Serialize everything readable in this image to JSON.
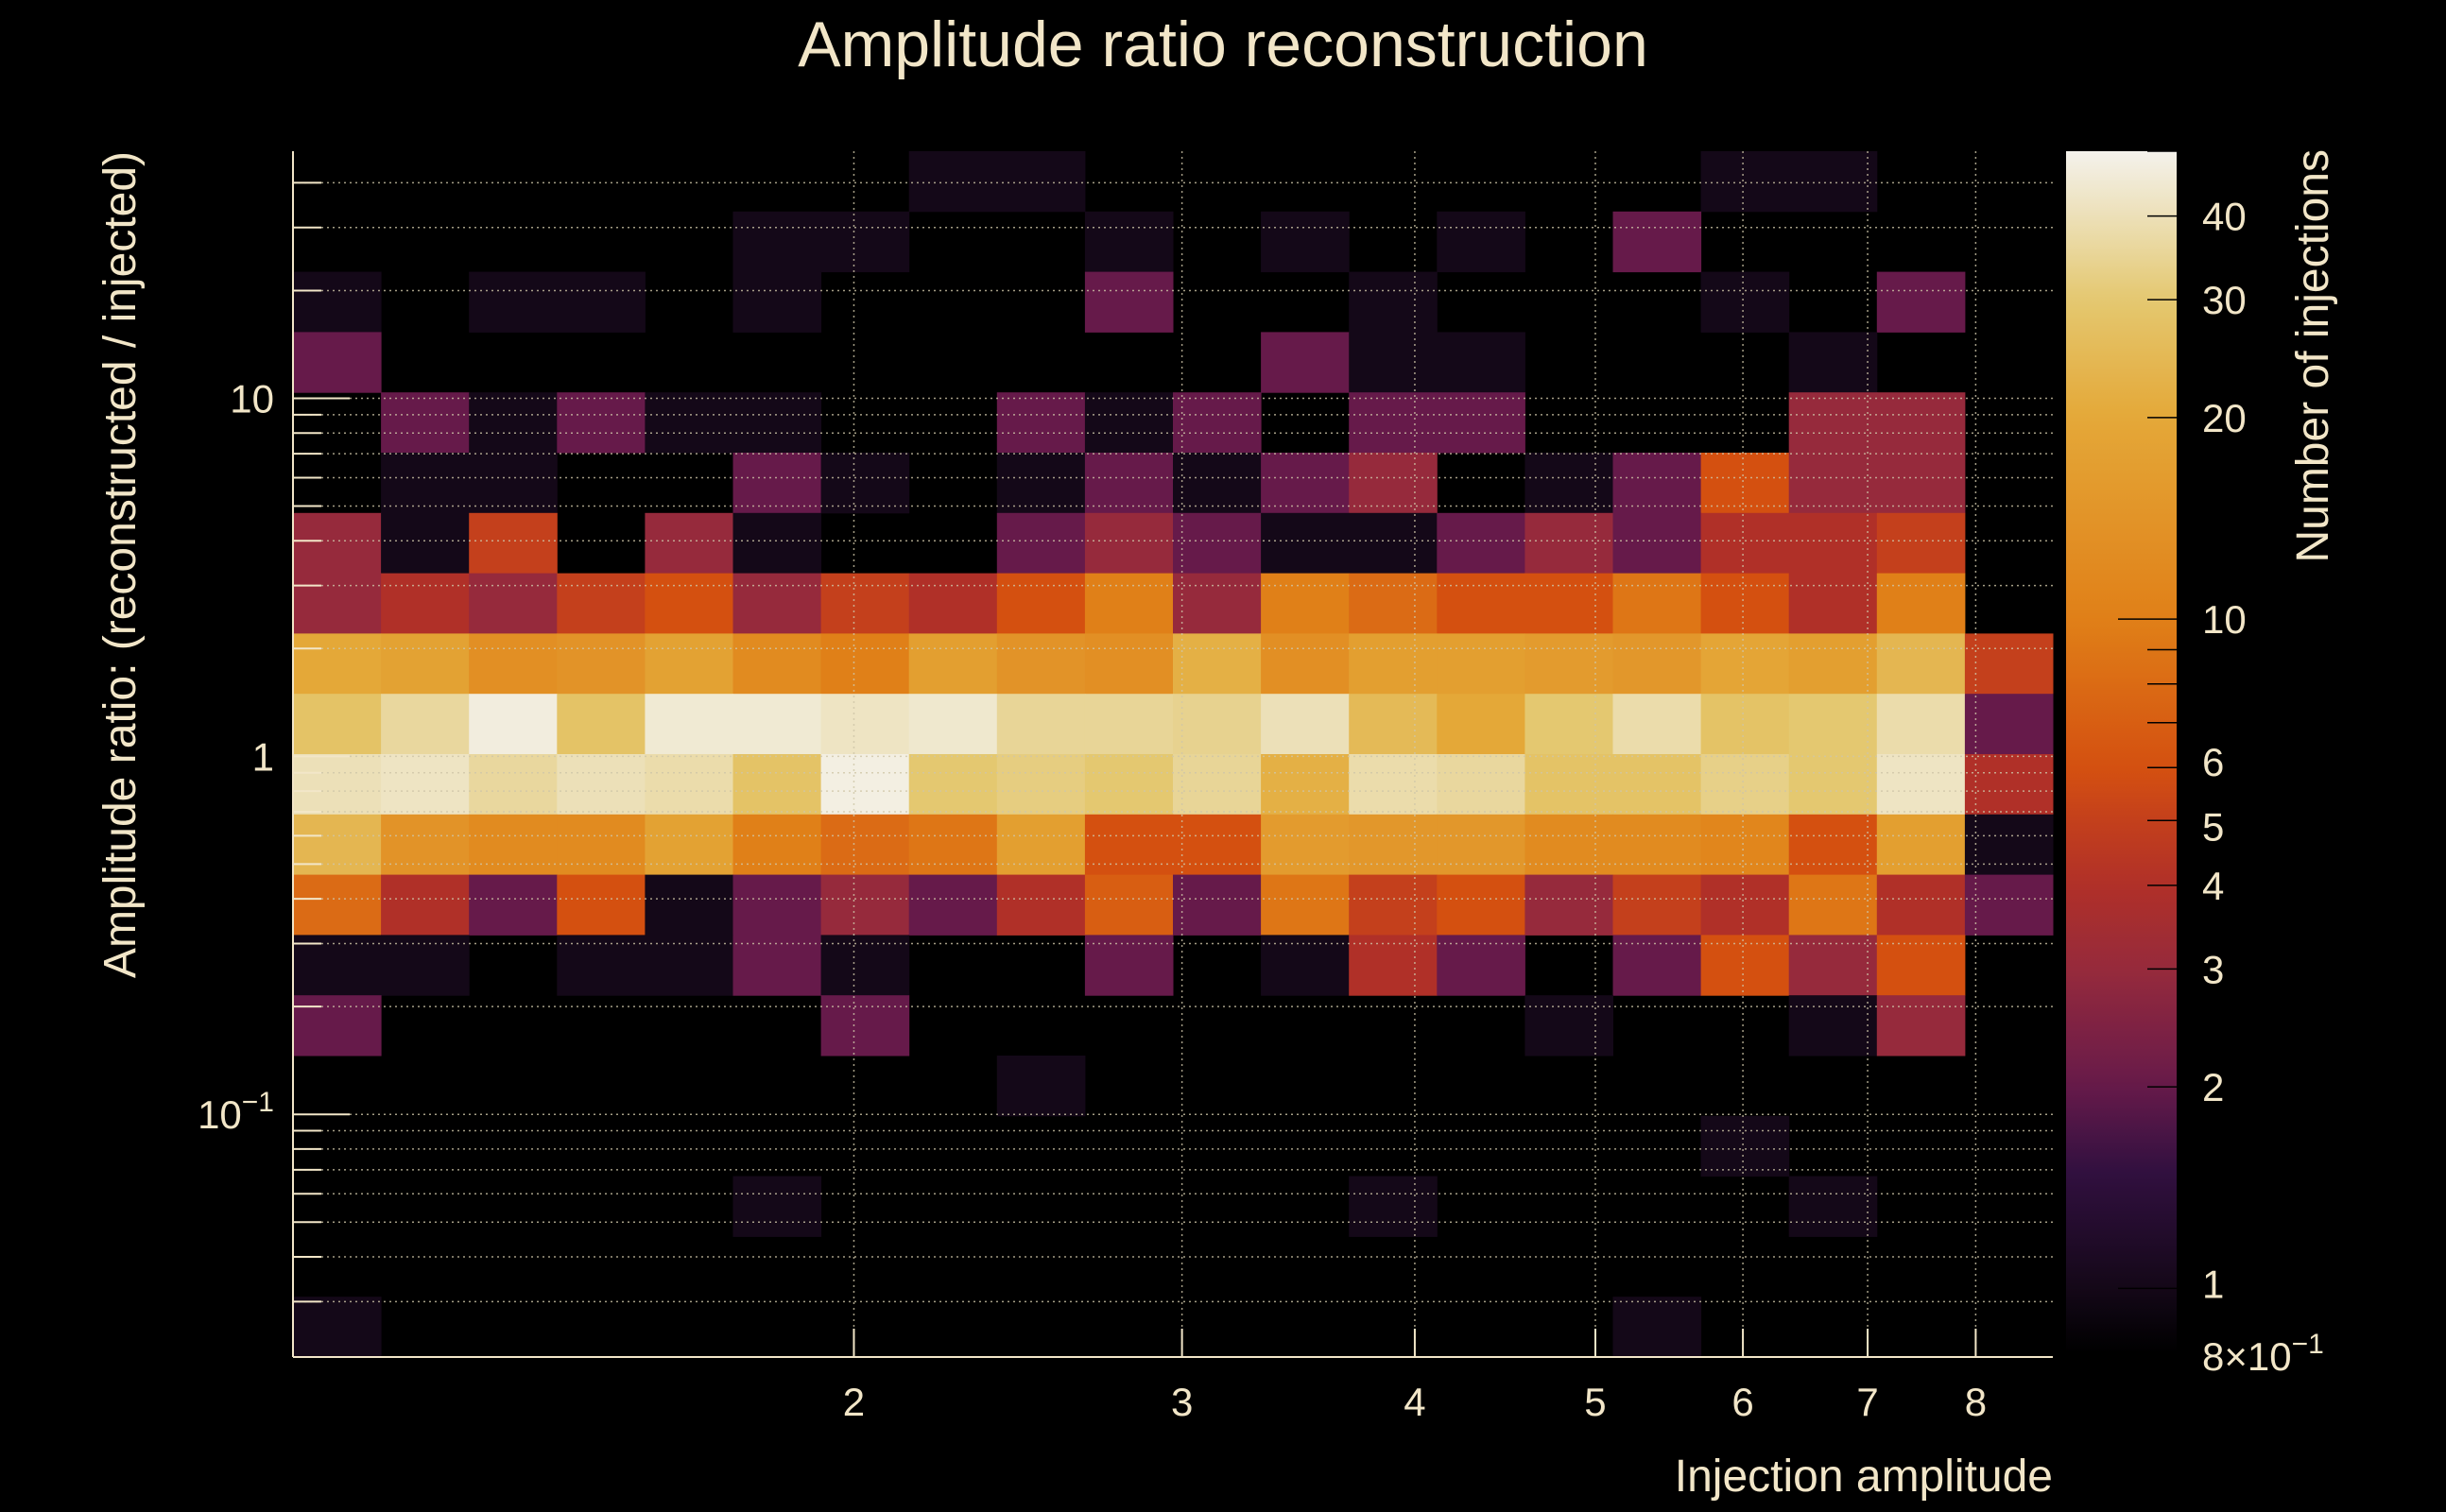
{
  "chart_data": {
    "type": "heatmap",
    "title": "Amplitude ratio reconstruction",
    "xlabel": "Injection amplitude",
    "ylabel": "Amplitude ratio: (reconstructed / injected)",
    "zlabel": "Number of injections",
    "xscale": "log",
    "yscale": "log",
    "zscale": "log",
    "xlim": [
      1.0,
      8.8
    ],
    "ylim": [
      0.021,
      49
    ],
    "zlim": [
      0.8,
      50
    ],
    "x_bins": 20,
    "y_bins": 20,
    "x_ticks": [
      {
        "v": 2,
        "label": "2"
      },
      {
        "v": 3,
        "label": "3"
      },
      {
        "v": 4,
        "label": "4"
      },
      {
        "v": 5,
        "label": "5"
      },
      {
        "v": 6,
        "label": "6"
      },
      {
        "v": 7,
        "label": "7"
      },
      {
        "v": 8,
        "label": "8"
      }
    ],
    "y_ticks": [
      {
        "v": 10,
        "label": "10"
      },
      {
        "v": 1,
        "label": "1"
      },
      {
        "v": 0.1,
        "label": "10",
        "sup": "−1"
      }
    ],
    "z_ticks": [
      {
        "v": 40,
        "label": "40"
      },
      {
        "v": 30,
        "label": "30"
      },
      {
        "v": 20,
        "label": "20"
      },
      {
        "v": 10,
        "label": "10"
      },
      {
        "v": 6,
        "label": "6"
      },
      {
        "v": 5,
        "label": "5"
      },
      {
        "v": 4,
        "label": "4"
      },
      {
        "v": 3,
        "label": "3"
      },
      {
        "v": 2,
        "label": "2"
      },
      {
        "v": 1,
        "label": "1"
      },
      {
        "v": 0.8,
        "label": "8×10",
        "sup": "−1"
      }
    ],
    "grid": true,
    "z_rows_top_to_bottom": [
      [
        0,
        0,
        0,
        0,
        0,
        0,
        0,
        1,
        1,
        0,
        0,
        0,
        0,
        0,
        0,
        0,
        1,
        1,
        0,
        0
      ],
      [
        0,
        0,
        0,
        0,
        0,
        1,
        1,
        0,
        0,
        1,
        0,
        1,
        0,
        1,
        0,
        2,
        0,
        0,
        0,
        0
      ],
      [
        1,
        0,
        1,
        1,
        0,
        1,
        0,
        0,
        0,
        2,
        0,
        0,
        1,
        0,
        0,
        0,
        1,
        0,
        2,
        0
      ],
      [
        2,
        0,
        0,
        0,
        0,
        0,
        0,
        0,
        0,
        0,
        0,
        2,
        1,
        1,
        0,
        0,
        0,
        1,
        0,
        0
      ],
      [
        0,
        2,
        1,
        2,
        1,
        1,
        0,
        0,
        2,
        1,
        2,
        0,
        2,
        2,
        0,
        0,
        0,
        3,
        3,
        0
      ],
      [
        0,
        1,
        1,
        0,
        0,
        2,
        1,
        0,
        1,
        2,
        1,
        2,
        3,
        0,
        1,
        2,
        6,
        3,
        3,
        0
      ],
      [
        3,
        1,
        5,
        0,
        3,
        1,
        0,
        0,
        2,
        3,
        2,
        1,
        1,
        2,
        3,
        2,
        4,
        4,
        5,
        0
      ],
      [
        3,
        4,
        3,
        5,
        6,
        3,
        5,
        4,
        6,
        10,
        3,
        10,
        8,
        6,
        6,
        9,
        6,
        4,
        10,
        0
      ],
      [
        20,
        18,
        13,
        14,
        18,
        12,
        10,
        17,
        14,
        13,
        22,
        13,
        17,
        17,
        16,
        15,
        19,
        17,
        24,
        5
      ],
      [
        28,
        36,
        47,
        28,
        45,
        45,
        42,
        44,
        35,
        35,
        34,
        40,
        25,
        20,
        30,
        38,
        28,
        30,
        38,
        2
      ],
      [
        40,
        42,
        36,
        40,
        38,
        28,
        48,
        30,
        32,
        30,
        35,
        22,
        38,
        36,
        28,
        28,
        33,
        30,
        42,
        4
      ],
      [
        24,
        14,
        12,
        12,
        18,
        10,
        8,
        9,
        17,
        6,
        6,
        16,
        15,
        15,
        12,
        12,
        11,
        6,
        17,
        1
      ],
      [
        8,
        4,
        2,
        6,
        1,
        2,
        3,
        2,
        4,
        7,
        2,
        9,
        5,
        6,
        3,
        5,
        4,
        9,
        4,
        2
      ],
      [
        1,
        1,
        0,
        1,
        1,
        2,
        1,
        0,
        0,
        2,
        0,
        1,
        4,
        2,
        0,
        2,
        6,
        3,
        6,
        0
      ],
      [
        2,
        0,
        0,
        0,
        0,
        0,
        2,
        0,
        0,
        0,
        0,
        0,
        0,
        0,
        1,
        0,
        0,
        1,
        3,
        0
      ],
      [
        0,
        0,
        0,
        0,
        0,
        0,
        0,
        0,
        1,
        0,
        0,
        0,
        0,
        0,
        0,
        0,
        0,
        0,
        0,
        0
      ],
      [
        0,
        0,
        0,
        0,
        0,
        0,
        0,
        0,
        0,
        0,
        0,
        0,
        0,
        0,
        0,
        0,
        1,
        0,
        0,
        0
      ],
      [
        0,
        0,
        0,
        0,
        0,
        1,
        0,
        0,
        0,
        0,
        0,
        0,
        1,
        0,
        0,
        0,
        0,
        1,
        0,
        0
      ],
      [
        0,
        0,
        0,
        0,
        0,
        0,
        0,
        0,
        0,
        0,
        0,
        0,
        0,
        0,
        0,
        0,
        0,
        0,
        0,
        0
      ],
      [
        1,
        0,
        0,
        0,
        0,
        0,
        0,
        0,
        0,
        0,
        0,
        0,
        0,
        0,
        0,
        1,
        0,
        0,
        0,
        0
      ]
    ],
    "colormap": [
      [
        0.8,
        "#000000"
      ],
      [
        1,
        "#140818"
      ],
      [
        1.5,
        "#321040"
      ],
      [
        2,
        "#661a4a"
      ],
      [
        3,
        "#962a3c"
      ],
      [
        4,
        "#b03028"
      ],
      [
        5,
        "#c4401c"
      ],
      [
        6,
        "#d45010"
      ],
      [
        10,
        "#e08018"
      ],
      [
        20,
        "#e4a838"
      ],
      [
        30,
        "#e4c870"
      ],
      [
        40,
        "#ece0b8"
      ],
      [
        50,
        "#f4f2ec"
      ]
    ]
  }
}
